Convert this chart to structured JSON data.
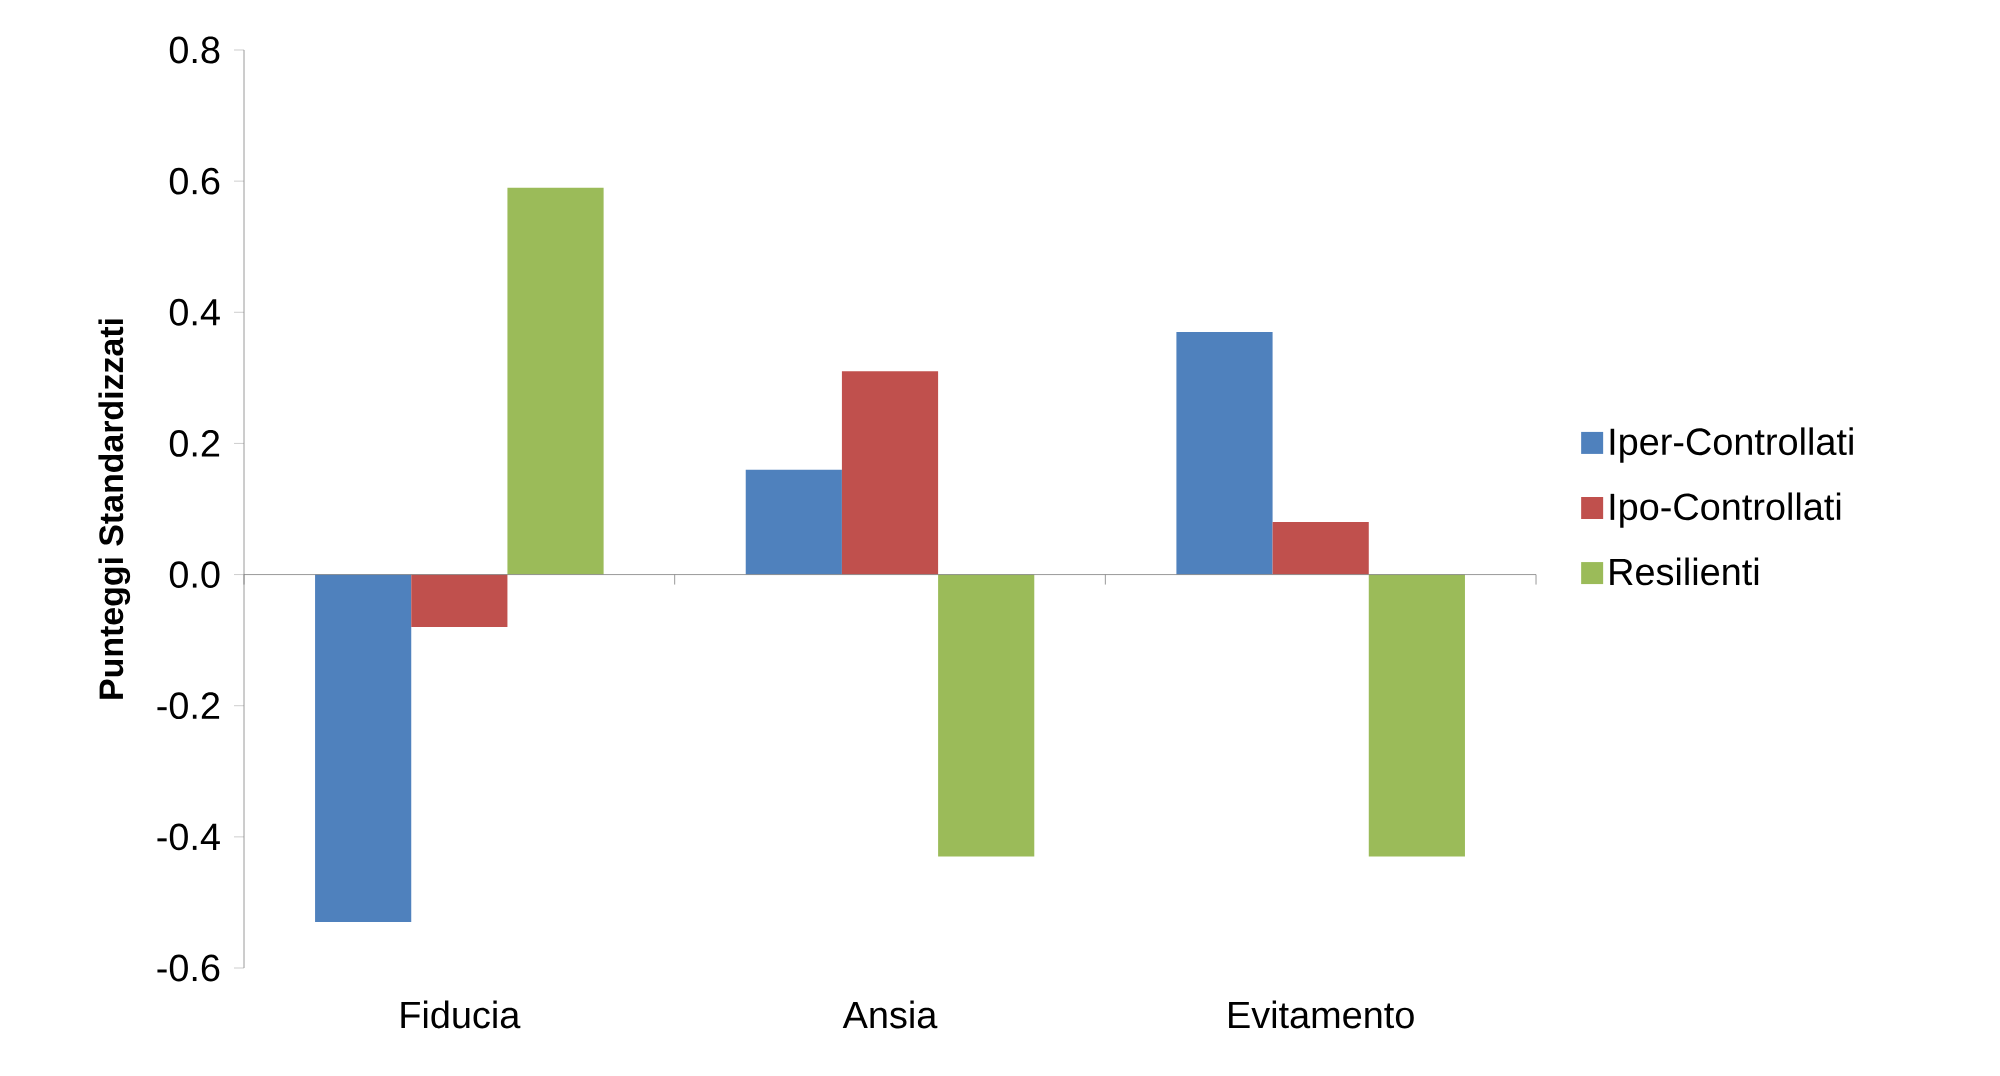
{
  "chart_data": {
    "type": "bar",
    "ylabel": "Punteggi  Standardizzati",
    "categories": [
      "Fiducia",
      "Ansia",
      "Evitamento"
    ],
    "series": [
      {
        "name": "Iper-Controllati",
        "color": "#4f81bd",
        "values": [
          -0.53,
          0.16,
          0.37
        ]
      },
      {
        "name": "Ipo-Controllati",
        "color": "#c0504d",
        "values": [
          -0.08,
          0.31,
          0.08
        ]
      },
      {
        "name": "Resilienti",
        "color": "#9bbb59",
        "values": [
          0.59,
          -0.43,
          -0.43
        ]
      }
    ],
    "ylim": [
      -0.6,
      0.8
    ],
    "yticks": [
      -0.6,
      -0.4,
      -0.2,
      {
        "value": 0,
        "label": "0.0"
      },
      0.2,
      0.4,
      0.6,
      0.8
    ],
    "legend": "right"
  }
}
